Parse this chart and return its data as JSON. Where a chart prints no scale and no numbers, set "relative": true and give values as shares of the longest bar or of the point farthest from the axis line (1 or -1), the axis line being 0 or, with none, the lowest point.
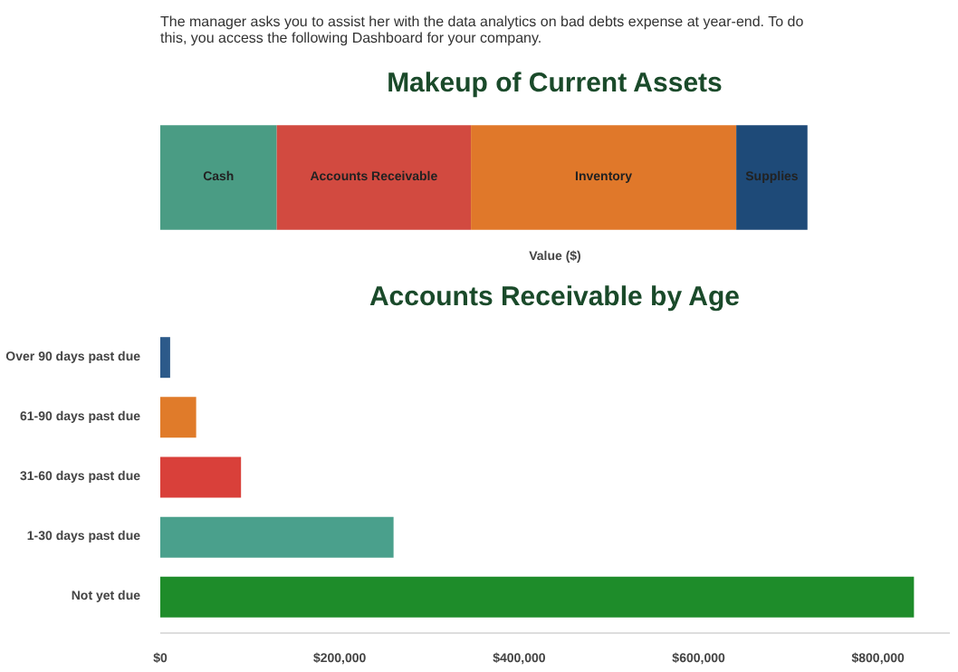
{
  "chart_data": [
    {
      "type": "bar",
      "orientation": "horizontal",
      "stacked": true,
      "relative": true,
      "title": "Makeup of Current Assets",
      "xlabel": "Value ($)",
      "annotations": [
        "The manager asks you to assist her with the data analytics on bad debts expense at year-end. To do this, you access the following Dashboard for your company."
      ],
      "categories": [
        null
      ],
      "grid": false,
      "series": [
        {
          "name": "Cash",
          "color": "#4a9c84",
          "values": [
            0.18
          ]
        },
        {
          "name": "Accounts Receivable",
          "color": "#d24a40",
          "values": [
            0.3
          ]
        },
        {
          "name": "Inventory",
          "color": "#e0782a",
          "values": [
            0.41
          ]
        },
        {
          "name": "Supplies",
          "color": "#1e4a78",
          "values": [
            0.11
          ]
        }
      ]
    },
    {
      "type": "bar",
      "orientation": "horizontal",
      "title": "Accounts Receivable by Age",
      "categories": [
        "Over 90 days past due",
        "61-90 days past due",
        "31-60 days past due",
        "1-30 days past due",
        "Not yet due"
      ],
      "values": [
        11000,
        40000,
        90000,
        260000,
        840000
      ],
      "colors": [
        "#2c5a8a",
        "#e07b2a",
        "#d9403a",
        "#4aa08c",
        "#1e8c2a"
      ],
      "xlim": [
        0,
        880000
      ],
      "xticks": [
        {
          "value": 0,
          "label": "$0"
        },
        {
          "value": 200000,
          "label": "$200,000"
        },
        {
          "value": 400000,
          "label": "$400,000"
        },
        {
          "value": 600000,
          "label": "$600,000"
        },
        {
          "value": 800000,
          "label": "$800,000"
        }
      ],
      "grid": false
    }
  ]
}
